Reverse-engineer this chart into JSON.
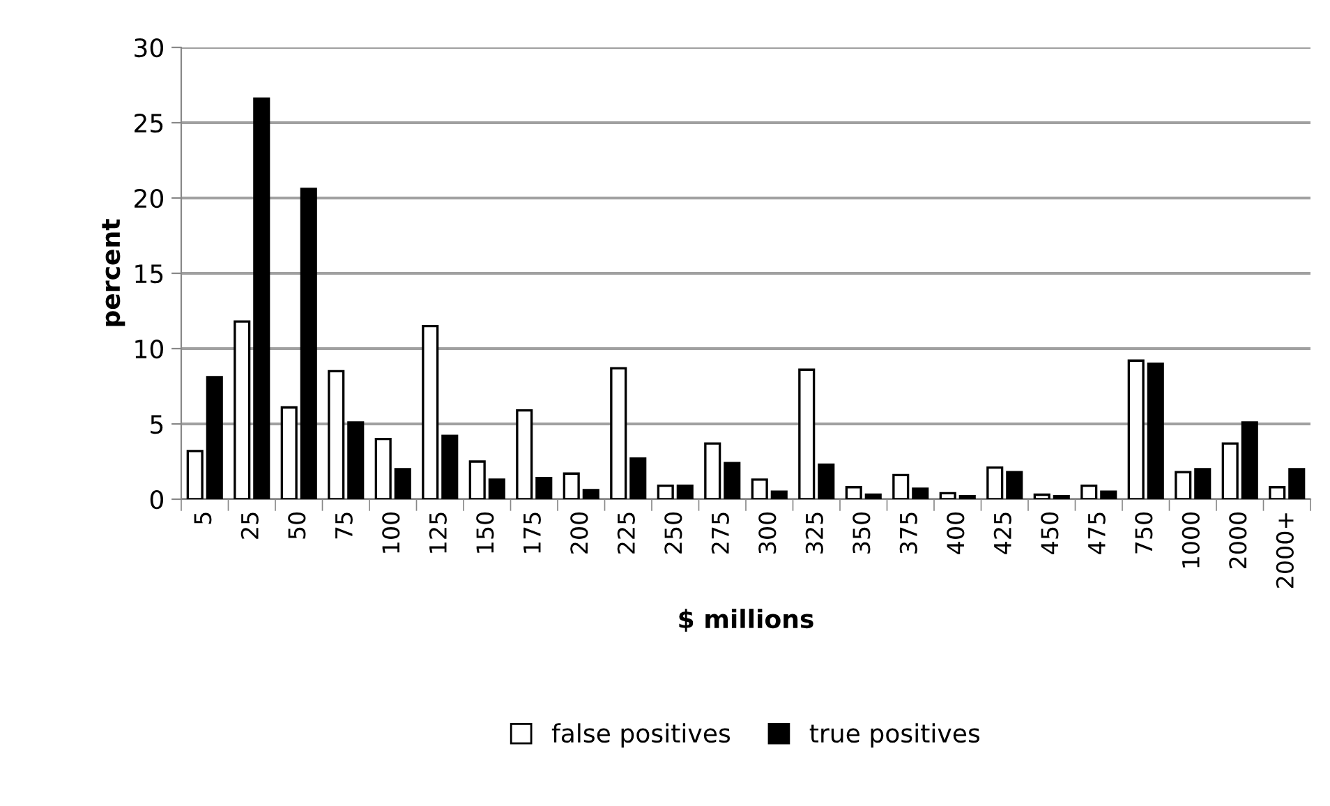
{
  "chart_data": {
    "type": "bar",
    "xlabel": "$ millions",
    "ylabel": "percent",
    "categories": [
      "5",
      "25",
      "50",
      "75",
      "100",
      "125",
      "150",
      "175",
      "200",
      "225",
      "250",
      "275",
      "300",
      "325",
      "350",
      "375",
      "400",
      "425",
      "450",
      "475",
      "750",
      "1000",
      "2000",
      "2000+"
    ],
    "series": [
      {
        "name": "false positives",
        "color": "#ffffff",
        "values": [
          3.2,
          11.8,
          6.1,
          8.5,
          4.0,
          11.5,
          2.5,
          5.9,
          1.7,
          8.7,
          0.9,
          3.7,
          1.3,
          8.6,
          0.8,
          1.6,
          0.4,
          2.1,
          0.3,
          0.9,
          9.2,
          1.8,
          3.7,
          0.8
        ]
      },
      {
        "name": "true positives",
        "color": "#000000",
        "values": [
          8.1,
          26.6,
          20.6,
          5.1,
          2.0,
          4.2,
          1.3,
          1.4,
          0.6,
          2.7,
          0.9,
          2.4,
          0.5,
          2.3,
          0.3,
          0.7,
          0.2,
          1.8,
          0.2,
          0.5,
          9.0,
          2.0,
          5.1,
          2.0
        ]
      }
    ],
    "ylim": [
      0,
      30
    ],
    "yticks": [
      0,
      5,
      10,
      15,
      20,
      25,
      30
    ],
    "grid": "y",
    "legend": "bottom"
  }
}
